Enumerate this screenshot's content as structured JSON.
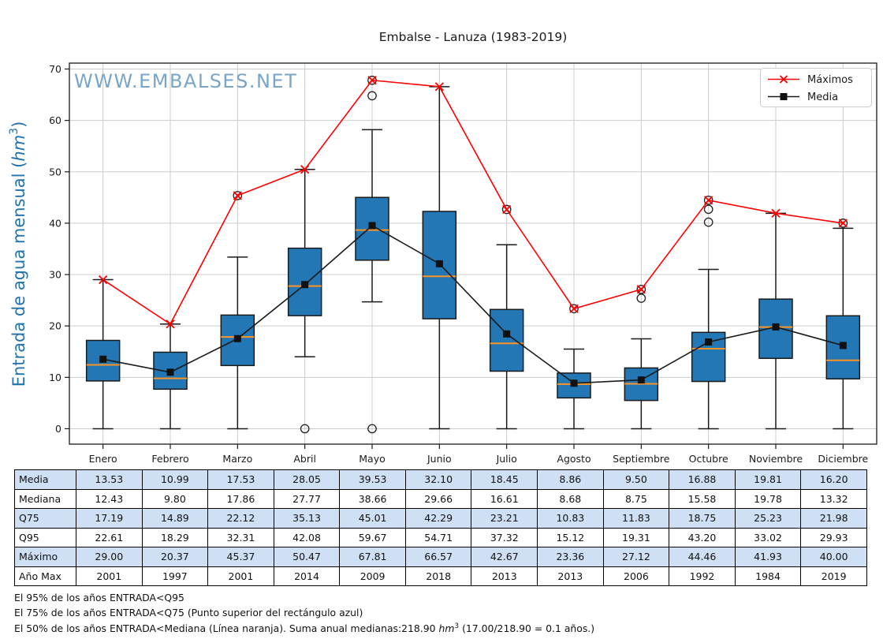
{
  "title": "Embalse - Lanuza (1983-2019)",
  "watermark": "WWW.EMBALSES.NET",
  "y_axis": {
    "label_prefix": "Entrada de agua mensual (",
    "unit": "hm",
    "superscript": "3",
    "label_suffix": ")"
  },
  "legend": {
    "maximos": "Máximos",
    "media": "Media"
  },
  "chart_data": {
    "type": "boxplot",
    "title": "Embalse - Lanuza (1983-2019)",
    "ylabel": "Entrada de agua mensual (hm3)",
    "xlabel": "",
    "grid": true,
    "legend_position": "upper right",
    "ylim": [
      -3.0,
      71.15
    ],
    "yticks": [
      0,
      10,
      20,
      30,
      40,
      50,
      60,
      70
    ],
    "categories": [
      "Enero",
      "Febrero",
      "Marzo",
      "Abril",
      "Mayo",
      "Junio",
      "Julio",
      "Agosto",
      "Septiembre",
      "Octubre",
      "Noviembre",
      "Diciembre"
    ],
    "series": {
      "media": [
        13.53,
        10.99,
        17.53,
        28.05,
        39.53,
        32.1,
        18.45,
        8.86,
        9.5,
        16.88,
        19.81,
        16.2
      ],
      "mediana": [
        12.43,
        9.8,
        17.86,
        27.77,
        38.66,
        29.66,
        16.61,
        8.68,
        8.75,
        15.58,
        19.78,
        13.32
      ],
      "q25": [
        9.3,
        7.7,
        12.3,
        22.0,
        32.8,
        21.4,
        11.2,
        6.0,
        5.5,
        9.2,
        13.7,
        9.7
      ],
      "q75": [
        17.19,
        14.89,
        22.12,
        35.13,
        45.01,
        42.29,
        23.21,
        10.83,
        11.83,
        18.75,
        25.23,
        21.98
      ],
      "q95": [
        22.61,
        18.29,
        32.31,
        42.08,
        59.67,
        54.71,
        37.32,
        15.12,
        19.31,
        43.2,
        33.02,
        29.93
      ],
      "maximo": [
        29.0,
        20.37,
        45.37,
        50.47,
        67.81,
        66.57,
        42.67,
        23.36,
        27.12,
        44.46,
        41.93,
        40.0
      ],
      "ano_max": [
        2001,
        1997,
        2001,
        2014,
        2009,
        2018,
        2013,
        2013,
        2006,
        1992,
        1984,
        2019
      ],
      "whisker_low": [
        0,
        0,
        0,
        14.0,
        24.7,
        0,
        0,
        0,
        0,
        0,
        0,
        0
      ],
      "whisker_high": [
        29.0,
        20.37,
        33.4,
        50.47,
        58.2,
        66.57,
        35.8,
        15.5,
        17.5,
        31.0,
        41.93,
        39.0
      ],
      "outliers": [
        [],
        [],
        [
          45.37
        ],
        [
          0
        ],
        [
          67.81,
          64.8,
          0
        ],
        [],
        [
          42.67
        ],
        [
          23.36
        ],
        [
          27.12,
          25.4
        ],
        [
          44.46,
          42.7,
          40.2
        ],
        [],
        [
          40.0
        ]
      ]
    }
  },
  "table": {
    "row_headers": [
      "Media",
      "Mediana",
      "Q75",
      "Q95",
      "Máximo",
      "Año Max"
    ],
    "columns": [
      "Enero",
      "Febrero",
      "Marzo",
      "Abril",
      "Mayo",
      "Junio",
      "Julio",
      "Agosto",
      "Septiembre",
      "Octubre",
      "Noviembre",
      "Diciembre"
    ],
    "rows": [
      [
        "13.53",
        "10.99",
        "17.53",
        "28.05",
        "39.53",
        "32.10",
        "18.45",
        "8.86",
        "9.50",
        "16.88",
        "19.81",
        "16.20"
      ],
      [
        "12.43",
        "9.80",
        "17.86",
        "27.77",
        "38.66",
        "29.66",
        "16.61",
        "8.68",
        "8.75",
        "15.58",
        "19.78",
        "13.32"
      ],
      [
        "17.19",
        "14.89",
        "22.12",
        "35.13",
        "45.01",
        "42.29",
        "23.21",
        "10.83",
        "11.83",
        "18.75",
        "25.23",
        "21.98"
      ],
      [
        "22.61",
        "18.29",
        "32.31",
        "42.08",
        "59.67",
        "54.71",
        "37.32",
        "15.12",
        "19.31",
        "43.20",
        "33.02",
        "29.93"
      ],
      [
        "29.00",
        "20.37",
        "45.37",
        "50.47",
        "67.81",
        "66.57",
        "42.67",
        "23.36",
        "27.12",
        "44.46",
        "41.93",
        "40.00"
      ],
      [
        "2001",
        "1997",
        "2001",
        "2014",
        "2009",
        "2018",
        "2013",
        "2013",
        "2006",
        "1992",
        "1984",
        "2019"
      ]
    ]
  },
  "footnotes": {
    "line1": "El 95% de los años ENTRADA<Q95",
    "line2": "El 75% de los años ENTRADA<Q75 (Punto superior del rectángulo azul)",
    "line3_prefix": "El 50% de los años ENTRADA<Mediana (Línea naranja). Suma anual medianas:218.90 ",
    "line3_unit": "hm",
    "line3_sup": "3",
    "line3_suffix": " (17.00/218.90 = 0.1 años.)"
  },
  "colors": {
    "box_fill": "#2377b4",
    "box_edge": "#1a1a1a",
    "median_line": "#ff9425",
    "max_line": "#ff0000",
    "mean_line": "#1a1a1a",
    "grid": "#cccccc",
    "ylabel": "#2272ab",
    "watermark": "#79a5c9",
    "table_shade": "#cfe0f4"
  }
}
